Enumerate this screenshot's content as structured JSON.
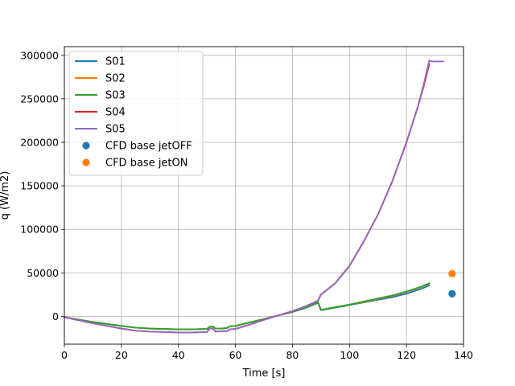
{
  "chart_data": {
    "type": "line",
    "title": "",
    "xlabel": "Time [s]",
    "ylabel": "q (W/m2)",
    "xlim": [
      0,
      140
    ],
    "ylim": [
      -32000,
      310000
    ],
    "xticks": [
      0,
      20,
      40,
      60,
      80,
      100,
      120,
      140
    ],
    "yticks": [
      0,
      50000,
      100000,
      150000,
      200000,
      250000,
      300000
    ],
    "xtick_labels": [
      "0",
      "20",
      "40",
      "60",
      "80",
      "100",
      "120",
      "140"
    ],
    "ytick_labels": [
      "0",
      "50000",
      "100000",
      "150000",
      "200000",
      "250000",
      "300000"
    ],
    "grid": true,
    "legend_position": "top-left",
    "series": [
      {
        "name": "S01",
        "kind": "line",
        "color": "#1f77b4",
        "x": [
          0,
          10,
          20,
          25,
          30,
          40,
          45,
          50,
          51,
          52,
          53,
          55,
          57,
          58,
          60,
          65,
          70,
          75,
          80,
          85,
          89,
          90,
          95,
          100,
          105,
          110,
          115,
          120,
          125,
          128
        ],
        "y": [
          -1000,
          -6500,
          -11000,
          -13000,
          -14000,
          -15000,
          -15000,
          -14500,
          -12000,
          -11500,
          -14000,
          -14000,
          -13500,
          -11500,
          -11000,
          -7000,
          -3000,
          1000,
          5000,
          10000,
          15500,
          7000,
          10000,
          13000,
          16000,
          19000,
          22000,
          26000,
          31500,
          35500
        ]
      },
      {
        "name": "S02",
        "kind": "line",
        "color": "#ff7f0e",
        "x": [
          0,
          10,
          20,
          25,
          30,
          40,
          45,
          50,
          51,
          52,
          53,
          55,
          57,
          58,
          60,
          65,
          70,
          75,
          80,
          85,
          89,
          90,
          95,
          100,
          105,
          110,
          115,
          120,
          125,
          128
        ],
        "y": [
          -1000,
          -6500,
          -11000,
          -13000,
          -14000,
          -15000,
          -15000,
          -14500,
          -12000,
          -11500,
          -14000,
          -14000,
          -13500,
          -11500,
          -11000,
          -7000,
          -3000,
          1000,
          5000,
          10500,
          16000,
          7500,
          10500,
          13500,
          16500,
          20000,
          23500,
          28000,
          33500,
          37500
        ]
      },
      {
        "name": "S03",
        "kind": "line",
        "color": "#2ca02c",
        "x": [
          0,
          10,
          20,
          25,
          30,
          40,
          45,
          50,
          51,
          52,
          53,
          55,
          57,
          58,
          60,
          65,
          70,
          75,
          80,
          85,
          89,
          90,
          95,
          100,
          105,
          110,
          115,
          120,
          125,
          128
        ],
        "y": [
          -1000,
          -6500,
          -11000,
          -13000,
          -14000,
          -15000,
          -15000,
          -14500,
          -12000,
          -11500,
          -14000,
          -14000,
          -13500,
          -11500,
          -11000,
          -7000,
          -3000,
          1000,
          5000,
          10500,
          16000,
          7500,
          10500,
          13500,
          17000,
          20500,
          24000,
          28500,
          34000,
          38000
        ]
      },
      {
        "name": "S04",
        "kind": "line",
        "color": "#d62728",
        "x": [
          0,
          10,
          20,
          25,
          30,
          40,
          45,
          50,
          51,
          52,
          53,
          55,
          57,
          58,
          60,
          65,
          70,
          75,
          80,
          85,
          89,
          90,
          95,
          100,
          105,
          110,
          115,
          120,
          124,
          126,
          128
        ],
        "y": [
          -1000,
          -8000,
          -14000,
          -16500,
          -17500,
          -18500,
          -18500,
          -18000,
          -14000,
          -14000,
          -17500,
          -17000,
          -17000,
          -15000,
          -14500,
          -9500,
          -4000,
          1000,
          6000,
          12000,
          18000,
          25000,
          38000,
          58000,
          86000,
          117000,
          155000,
          200000,
          241000,
          264000,
          290000
        ]
      },
      {
        "name": "S05",
        "kind": "line",
        "color": "#9467bd",
        "x": [
          0,
          10,
          20,
          25,
          30,
          40,
          45,
          50,
          51,
          52,
          53,
          55,
          57,
          58,
          60,
          65,
          70,
          75,
          80,
          85,
          89,
          90,
          95,
          100,
          105,
          110,
          115,
          120,
          124,
          126,
          128,
          129,
          133
        ],
        "y": [
          -1000,
          -8000,
          -14000,
          -16500,
          -17500,
          -18500,
          -18500,
          -18000,
          -14000,
          -14000,
          -17500,
          -17000,
          -17000,
          -15000,
          -14500,
          -9500,
          -4000,
          1000,
          6000,
          12000,
          18000,
          25000,
          38000,
          58000,
          86000,
          117000,
          155000,
          200000,
          241000,
          266000,
          294000,
          293000,
          293000
        ]
      },
      {
        "name": "CFD base jetOFF",
        "kind": "scatter",
        "color": "#1f77b4",
        "x": [
          136
        ],
        "y": [
          26000
        ]
      },
      {
        "name": "CFD base jetON",
        "kind": "scatter",
        "color": "#ff7f0e",
        "x": [
          136
        ],
        "y": [
          49000
        ]
      }
    ]
  }
}
